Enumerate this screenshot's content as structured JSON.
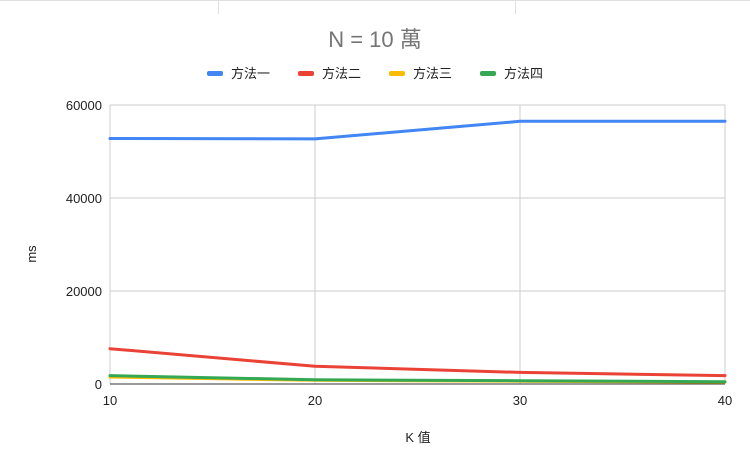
{
  "chart_data": {
    "type": "line",
    "title": "N = 10 萬",
    "xlabel": "K 值",
    "ylabel": "ms",
    "x": [
      10,
      20,
      30,
      40
    ],
    "xlim": [
      10,
      40
    ],
    "ylim": [
      0,
      60000
    ],
    "xticks": [
      "10",
      "20",
      "30",
      "40"
    ],
    "yticks": [
      "0",
      "20000",
      "40000",
      "60000"
    ],
    "grid": true,
    "legend_position": "top",
    "series": [
      {
        "name": "方法一",
        "color": "#4285F4",
        "values": [
          52800,
          52700,
          56500,
          56500
        ]
      },
      {
        "name": "方法二",
        "color": "#EA4335",
        "values": [
          7600,
          3800,
          2500,
          1800
        ]
      },
      {
        "name": "方法三",
        "color": "#FBBC04",
        "values": [
          1500,
          800,
          600,
          400
        ]
      },
      {
        "name": "方法四",
        "color": "#34A853",
        "values": [
          1800,
          900,
          700,
          500
        ]
      }
    ]
  }
}
